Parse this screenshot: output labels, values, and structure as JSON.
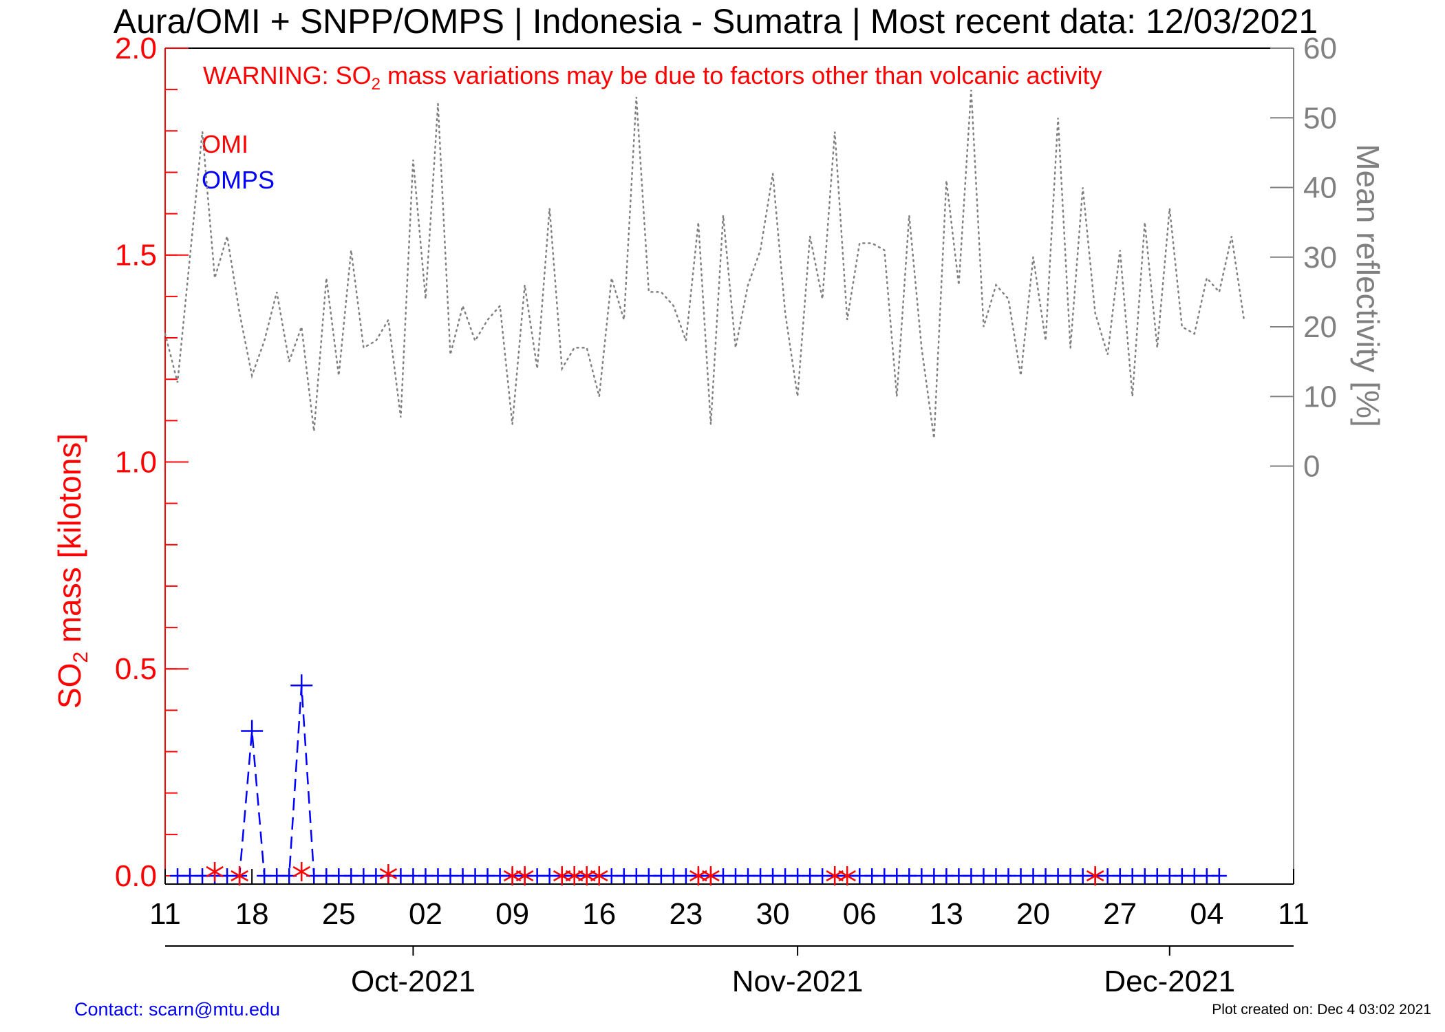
{
  "title": "Aura/OMI + SNPP/OMPS | Indonesia - Sumatra | Most recent data: 12/03/2021",
  "warning": {
    "prefix": "WARNING: SO",
    "sub": "2",
    "suffix": " mass variations may be due to factors other than volcanic activity"
  },
  "footer": {
    "contact": "Contact: scarn@mtu.edu",
    "created": "Plot created on: Dec  4 03:02 2021"
  },
  "colors": {
    "omi": "#ff0000",
    "omps": "#0000ff",
    "reflectivity": "#808080",
    "axis": "#000000"
  },
  "chart_data": {
    "type": "line",
    "x_axis": {
      "start": "2021-09-11",
      "end": "2021-12-11",
      "tick_labels": [
        "11",
        "18",
        "25",
        "02",
        "09",
        "16",
        "23",
        "30",
        "06",
        "13",
        "20",
        "27",
        "04",
        "11"
      ],
      "tick_dates": [
        "2021-09-11",
        "2021-09-18",
        "2021-09-25",
        "2021-10-02",
        "2021-10-09",
        "2021-10-16",
        "2021-10-23",
        "2021-10-30",
        "2021-11-06",
        "2021-11-13",
        "2021-11-20",
        "2021-11-27",
        "2021-12-04",
        "2021-12-11"
      ],
      "month_labels": [
        {
          "label": "Oct-2021",
          "date": "2021-10-01"
        },
        {
          "label": "Nov-2021",
          "date": "2021-11-01"
        },
        {
          "label": "Dec-2021",
          "date": "2021-12-01"
        }
      ]
    },
    "y_left": {
      "label_prefix": "SO",
      "label_sub": "2",
      "label_suffix": " mass [kilotons]",
      "ylim": [
        -0.02,
        2.0
      ],
      "tick_labels": [
        "0.0",
        "0.5",
        "1.0",
        "1.5",
        "2.0"
      ],
      "ticks": [
        0,
        0.5,
        1.0,
        1.5,
        2.0
      ],
      "minor_step": 0.1
    },
    "y_right": {
      "label": "Mean reflectivity [%]",
      "tick_labels": [
        "0",
        "10",
        "20",
        "30",
        "40",
        "50",
        "60"
      ],
      "ticks": [
        0,
        10,
        20,
        30,
        40,
        50,
        60
      ],
      "ylim": [
        -60,
        60
      ]
    },
    "legend": {
      "position": "top-left",
      "entries": [
        "OMI",
        "OMPS"
      ]
    },
    "series": [
      {
        "name": "OMI",
        "style": "asterisk",
        "points": [
          [
            "2021-09-15",
            0.01
          ],
          [
            "2021-09-17",
            0.0
          ],
          [
            "2021-09-22",
            0.01
          ],
          [
            "2021-09-29",
            0.005
          ],
          [
            "2021-10-09",
            0.0
          ],
          [
            "2021-10-10",
            0.0
          ],
          [
            "2021-10-13",
            0.0
          ],
          [
            "2021-10-14",
            0.0
          ],
          [
            "2021-10-15",
            0.0
          ],
          [
            "2021-10-16",
            0.0
          ],
          [
            "2021-10-24",
            0.0
          ],
          [
            "2021-10-25",
            0.0
          ],
          [
            "2021-11-04",
            0.0
          ],
          [
            "2021-11-05",
            0.0
          ],
          [
            "2021-11-25",
            0.0
          ]
        ]
      },
      {
        "name": "OMPS",
        "style": "plus-dashed",
        "start": "2021-09-12",
        "values": [
          0,
          0,
          0,
          0,
          0,
          0,
          0.35,
          0,
          0,
          0,
          0.46,
          0,
          0,
          0,
          0,
          0,
          0,
          0,
          0,
          0,
          0,
          0,
          0,
          0,
          0,
          0,
          0,
          0,
          0,
          0,
          0,
          0,
          0,
          0,
          0,
          0,
          0,
          0,
          0,
          0,
          0,
          0,
          0,
          0,
          0,
          0,
          0,
          0,
          0,
          0,
          0,
          0,
          0,
          0,
          0,
          0,
          0,
          0,
          0,
          0,
          0,
          0,
          0,
          0,
          0,
          0,
          0,
          0,
          0,
          0,
          0,
          0,
          0,
          0,
          0,
          0,
          0,
          0,
          0,
          0,
          0,
          0,
          0,
          0,
          0
        ]
      },
      {
        "name": "Mean reflectivity",
        "style": "dotted",
        "axis": "right",
        "start": "2021-09-11",
        "values": [
          19,
          12,
          30,
          48,
          27,
          33,
          22,
          13,
          18,
          25,
          15,
          20,
          5,
          27,
          13,
          31,
          17,
          18,
          21,
          7,
          44,
          24,
          52,
          16,
          23,
          18,
          21,
          23,
          6,
          26,
          14,
          37,
          14,
          17,
          17,
          10,
          27,
          21,
          53,
          25,
          25,
          23,
          18,
          35,
          6,
          36,
          17,
          26,
          31,
          42,
          22,
          10,
          33,
          24,
          48,
          21,
          32,
          32,
          31,
          10,
          36,
          17,
          4,
          41,
          26,
          54,
          20,
          26,
          24,
          13,
          30,
          18,
          50,
          17,
          40,
          22,
          16,
          31,
          10,
          35,
          17,
          37,
          20,
          19,
          27,
          25,
          33,
          21
        ]
      }
    ]
  }
}
